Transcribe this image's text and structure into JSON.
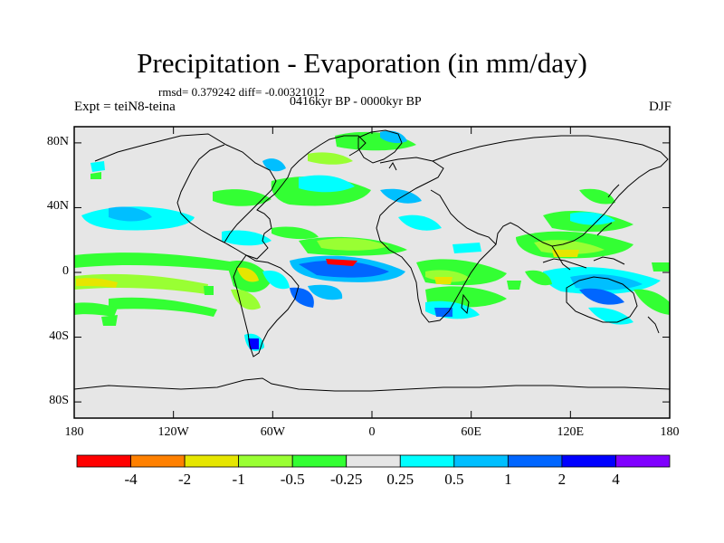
{
  "title": "Precipitation - Evaporation (in mm/day)",
  "stats": "rmsd= 0.379242 diff= -0.00321012",
  "period": "0416kyr BP - 0000kyr BP",
  "experiment": "Expt = teiN8-teina",
  "season": "DJF",
  "lat_ticks": [
    {
      "label": "80N",
      "lat": 80
    },
    {
      "label": "40N",
      "lat": 40
    },
    {
      "label": "0",
      "lat": 0
    },
    {
      "label": "40S",
      "lat": -40
    },
    {
      "label": "80S",
      "lat": -80
    }
  ],
  "lon_ticks": [
    {
      "label": "180",
      "lon": -180
    },
    {
      "label": "120W",
      "lon": -120
    },
    {
      "label": "60W",
      "lon": -60
    },
    {
      "label": "0",
      "lon": 0
    },
    {
      "label": "60E",
      "lon": 60
    },
    {
      "label": "120E",
      "lon": 120
    },
    {
      "label": "180",
      "lon": 180
    }
  ],
  "colorbar": {
    "colors": [
      "#ff0000",
      "#ff8000",
      "#e6e600",
      "#99ff33",
      "#33ff33",
      "#e6e6e6",
      "#00ffff",
      "#00bfff",
      "#0066ff",
      "#0000ff",
      "#8000ff"
    ],
    "labels": [
      "-4",
      "-2",
      "-1",
      "-0.5",
      "-0.25",
      "0.25",
      "0.5",
      "1",
      "2",
      "4"
    ]
  },
  "map": {
    "lon_range": [
      -180,
      180
    ],
    "lat_range": [
      -90,
      90
    ],
    "land_color": "#e6e6e6",
    "coast_color": "#000000"
  }
}
